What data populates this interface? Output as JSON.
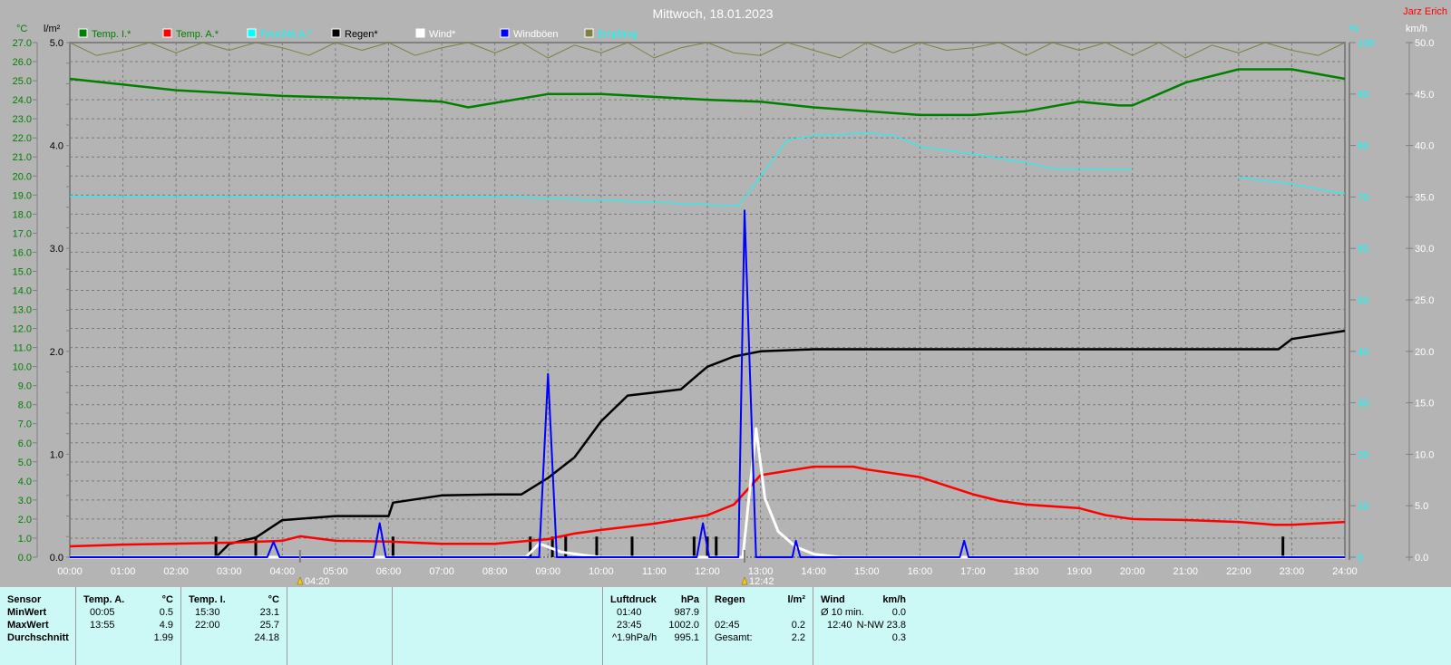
{
  "header": {
    "title": "Mittwoch, 18.01.2023",
    "author": "Jarz Erich"
  },
  "chart_data": {
    "type": "line",
    "title": "Mittwoch, 18.01.2023",
    "x_ticks": [
      "00:00",
      "01:00",
      "02:00",
      "03:00",
      "04:00",
      "05:00",
      "06:00",
      "07:00",
      "08:00",
      "09:00",
      "10:00",
      "11:00",
      "12:00",
      "13:00",
      "14:00",
      "15:00",
      "16:00",
      "17:00",
      "18:00",
      "19:00",
      "20:00",
      "21:00",
      "22:00",
      "23:00",
      "24:00"
    ],
    "xlim": [
      "00:00",
      "24:00"
    ],
    "grid": true,
    "legend_placement": "top",
    "axes": {
      "temp": {
        "label": "°C",
        "ylim": [
          0,
          27
        ],
        "ticks": [
          "0.0",
          "1.0",
          "2.0",
          "3.0",
          "4.0",
          "5.0",
          "6.0",
          "7.0",
          "8.0",
          "9.0",
          "10.0",
          "11.0",
          "12.0",
          "13.0",
          "14.0",
          "15.0",
          "16.0",
          "17.0",
          "18.0",
          "19.0",
          "20.0",
          "21.0",
          "22.0",
          "23.0",
          "24.0",
          "25.0",
          "26.0",
          "27.0"
        ],
        "color": "#008000"
      },
      "rain": {
        "label": "l/m²",
        "ylim": [
          0,
          5
        ],
        "ticks": [
          "0.0",
          "1.0",
          "2.0",
          "3.0",
          "4.0",
          "5.0"
        ],
        "color": "#000000"
      },
      "humidity": {
        "label": "%",
        "ylim": [
          0,
          100
        ],
        "ticks": [
          "0",
          "10",
          "20",
          "30",
          "40",
          "50",
          "60",
          "70",
          "80",
          "90",
          "100"
        ],
        "color": "#00ffff"
      },
      "wind": {
        "label": "km/h",
        "ylim": [
          0,
          50
        ],
        "ticks": [
          "0.0",
          "5.0",
          "10.0",
          "15.0",
          "20.0",
          "25.0",
          "30.0",
          "35.0",
          "40.0",
          "45.0",
          "50.0"
        ],
        "color": "#ffffff"
      }
    },
    "markers": [
      {
        "time": "04:20",
        "label": "04:20"
      },
      {
        "time": "12:42",
        "label": "12:42"
      }
    ],
    "series": [
      {
        "name": "Temp. I.*",
        "axis": "temp",
        "color": "#008000",
        "x": [
          "00:00",
          "02:00",
          "04:00",
          "06:00",
          "07:00",
          "07:30",
          "09:00",
          "10:00",
          "12:00",
          "13:00",
          "14:00",
          "15:00",
          "16:00",
          "17:00",
          "18:00",
          "19:00",
          "19:45",
          "20:00",
          "21:00",
          "22:00",
          "23:00",
          "24:00"
        ],
        "y": [
          25.1,
          24.5,
          24.2,
          24.05,
          23.9,
          23.6,
          24.3,
          24.3,
          24.0,
          23.9,
          23.6,
          23.4,
          23.2,
          23.2,
          23.4,
          23.9,
          23.7,
          23.7,
          24.9,
          25.6,
          25.6,
          25.1
        ]
      },
      {
        "name": "Temp. A.*",
        "axis": "temp",
        "color": "#ff0000",
        "x": [
          "00:00",
          "01:00",
          "03:00",
          "04:00",
          "04:20",
          "05:00",
          "06:00",
          "07:00",
          "08:00",
          "09:00",
          "09:30",
          "10:00",
          "11:00",
          "12:00",
          "12:30",
          "13:00",
          "14:00",
          "14:45",
          "15:00",
          "16:00",
          "17:00",
          "17:30",
          "18:00",
          "19:00",
          "19:30",
          "20:00",
          "21:00",
          "22:00",
          "22:40",
          "23:00",
          "24:00"
        ],
        "y": [
          0.57,
          0.66,
          0.76,
          0.86,
          1.1,
          0.86,
          0.82,
          0.7,
          0.7,
          0.95,
          1.24,
          1.43,
          1.76,
          2.2,
          2.76,
          4.3,
          4.75,
          4.75,
          4.6,
          4.2,
          3.3,
          2.95,
          2.76,
          2.57,
          2.2,
          2.0,
          1.95,
          1.85,
          1.7,
          1.7,
          1.85
        ]
      },
      {
        "name": "Feuchte A.*",
        "axis": "humidity",
        "color": "#00ffff",
        "x": [
          "00:00",
          "08:00",
          "11:00",
          "12:00",
          "12:35",
          "13:00",
          "13:30",
          "14:00",
          "15:00",
          "15:30",
          "16:00",
          "17:00",
          "18:00",
          "18:30",
          "19:00",
          "20:00",
          "21:00",
          "22:00",
          "23:00",
          "24:00"
        ],
        "y": [
          70.1,
          70.1,
          69.0,
          68.5,
          68.3,
          74.0,
          81.0,
          81.9,
          82.4,
          82.0,
          79.8,
          78.3,
          76.6,
          75.5,
          75.5,
          75.4,
          null,
          73.8,
          72.5,
          70.6
        ]
      },
      {
        "name": "Regen*",
        "axis": "rain",
        "color": "#000000",
        "x": [
          "00:00",
          "02:45",
          "03:00",
          "03:30",
          "04:00",
          "05:00",
          "06:00",
          "06:05",
          "07:00",
          "08:00",
          "08:30",
          "09:00",
          "09:30",
          "10:00",
          "10:30",
          "11:00",
          "11:30",
          "12:00",
          "12:30",
          "13:00",
          "14:00",
          "22:45",
          "23:00",
          "24:00"
        ],
        "y": [
          0,
          0,
          0.13,
          0.19,
          0.36,
          0.4,
          0.4,
          0.53,
          0.6,
          0.61,
          0.61,
          0.77,
          0.97,
          1.32,
          1.57,
          1.6,
          1.63,
          1.85,
          1.95,
          2.0,
          2.02,
          2.02,
          2.12,
          2.2
        ]
      },
      {
        "name": "Wind*",
        "axis": "wind",
        "color": "#ffffff",
        "x": [
          "00:00",
          "08:35",
          "08:50",
          "09:00",
          "09:15",
          "09:40",
          "10:00",
          "12:40",
          "12:55",
          "13:05",
          "13:20",
          "13:40",
          "14:00",
          "14:30",
          "24:00"
        ],
        "y": [
          0,
          0,
          1.3,
          1.0,
          0.5,
          0.2,
          0,
          0,
          12.5,
          5.7,
          2.5,
          1.0,
          0.3,
          0,
          0
        ]
      },
      {
        "name": "Windböen",
        "axis": "wind",
        "color": "#0000ff",
        "x": [
          "00:00",
          "03:43",
          "03:50",
          "03:57",
          "05:43",
          "05:50",
          "05:57",
          "08:50",
          "09:00",
          "09:10",
          "11:48",
          "11:55",
          "12:02",
          "12:35",
          "12:42",
          "12:55",
          "13:30",
          "13:36",
          "13:40",
          "13:45",
          "16:45",
          "16:50",
          "16:55",
          "24:00"
        ],
        "y": [
          0,
          0,
          1.5,
          0,
          0,
          3.3,
          0,
          0,
          17.8,
          0,
          0,
          3.3,
          0,
          0,
          33.7,
          0,
          0,
          0,
          1.6,
          0,
          0,
          1.6,
          0,
          0
        ]
      },
      {
        "name": "Empfang",
        "axis": "humidity",
        "color": "#808040",
        "x": [
          "00:00",
          "00:30",
          "01:00",
          "01:30",
          "02:00",
          "02:30",
          "03:00",
          "03:30",
          "04:00",
          "04:30",
          "05:00",
          "05:30",
          "06:00",
          "06:30",
          "07:00",
          "07:30",
          "08:00",
          "08:30",
          "09:00",
          "09:30",
          "10:00",
          "10:30",
          "11:00",
          "11:30",
          "12:00",
          "12:30",
          "13:00",
          "13:30",
          "14:00",
          "14:30",
          "15:00",
          "15:30",
          "16:00",
          "16:30",
          "17:00",
          "17:30",
          "18:00",
          "18:30",
          "19:00",
          "19:30",
          "20:00",
          "20:30",
          "21:00",
          "21:30",
          "22:00",
          "22:30",
          "23:00",
          "23:30",
          "24:00"
        ],
        "y": [
          100,
          97.5,
          98.5,
          100,
          98,
          100,
          98.5,
          100,
          99,
          97.5,
          100,
          98.5,
          100,
          97.5,
          99,
          100,
          98,
          100,
          97,
          99.5,
          98,
          100,
          97,
          99,
          100,
          98,
          97.5,
          100,
          98.5,
          97,
          100,
          98,
          100,
          98.5,
          99,
          100,
          97.5,
          100,
          98.5,
          100,
          97.5,
          100,
          97,
          99.5,
          98,
          100,
          98.5,
          97.5,
          100
        ]
      }
    ],
    "rain_events": {
      "axis": "rain",
      "value": 0.2,
      "x": [
        "02:45",
        "03:30",
        "06:05",
        "08:40",
        "09:05",
        "09:20",
        "09:55",
        "10:35",
        "11:45",
        "12:00",
        "12:10",
        "22:50"
      ]
    }
  },
  "panel": {
    "sensor": {
      "header": "Sensor",
      "rows": [
        "MinWert",
        "MaxWert",
        "Durchschnitt"
      ]
    },
    "temp_a": {
      "header": "Temp. A.",
      "unit": "°C",
      "rows": [
        [
          "00:05",
          "0.5"
        ],
        [
          "13:55",
          "4.9"
        ],
        [
          "",
          "1.99"
        ]
      ]
    },
    "temp_i": {
      "header": "Temp. I.",
      "unit": "°C",
      "rows": [
        [
          "15:30",
          "23.1"
        ],
        [
          "22:00",
          "25.7"
        ],
        [
          "",
          "24.18"
        ]
      ]
    },
    "luftdruck": {
      "header": "Luftdruck",
      "unit": "hPa",
      "rows": [
        [
          "01:40",
          "987.9"
        ],
        [
          "23:45",
          "1002.0"
        ],
        [
          "^1.9hPa/h",
          "995.1"
        ]
      ]
    },
    "regen": {
      "header": "Regen",
      "unit": "l/m²",
      "rows": [
        [
          "",
          ""
        ],
        [
          "02:45",
          "0.2"
        ],
        [
          "Gesamt:",
          "2.2"
        ]
      ]
    },
    "wind": {
      "header": "Wind",
      "unit": "km/h",
      "rows": [
        [
          "Ø 10 min.",
          "0.0"
        ],
        [
          "12:40",
          "N-NW 23.8"
        ],
        [
          "",
          "0.3"
        ]
      ]
    }
  }
}
